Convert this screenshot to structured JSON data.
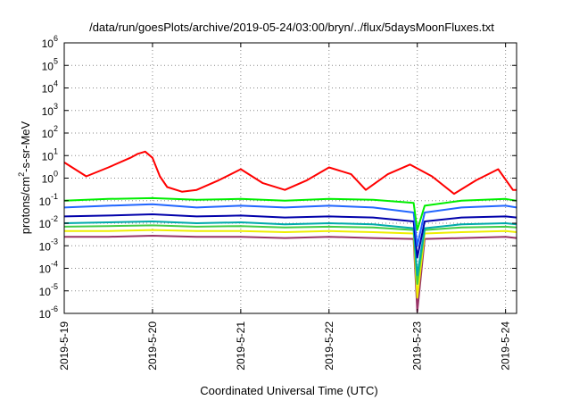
{
  "chart_data": {
    "type": "line",
    "title": "/data/run/goesPlots/archive/2019-05-24/03:00/bryn/../flux/5daysMoonFluxes.txt",
    "xlabel": "Coordinated Universal Time (UTC)",
    "ylabel": {
      "base": "protons/cm",
      "sup": "2",
      "rest": "-s-sr-MeV"
    },
    "y_scale": "log",
    "ylim_exponents": [
      -6,
      6
    ],
    "y_ticks": [
      {
        "base": "10",
        "exp": "-6",
        "e": -6
      },
      {
        "base": "10",
        "exp": "-5",
        "e": -5
      },
      {
        "base": "10",
        "exp": "-4",
        "e": -4
      },
      {
        "base": "10",
        "exp": "-3",
        "e": -3
      },
      {
        "base": "10",
        "exp": "-2",
        "e": -2
      },
      {
        "base": "10",
        "exp": "-1",
        "e": -1
      },
      {
        "base": "10",
        "exp": "0",
        "e": 0
      },
      {
        "base": "10",
        "exp": "1",
        "e": 1
      },
      {
        "base": "10",
        "exp": "2",
        "e": 2
      },
      {
        "base": "10",
        "exp": "3",
        "e": 3
      },
      {
        "base": "10",
        "exp": "4",
        "e": 4
      },
      {
        "base": "10",
        "exp": "5",
        "e": 5
      },
      {
        "base": "10",
        "exp": "6",
        "e": 6
      }
    ],
    "x_range_days": [
      "2019-05-19",
      "2019-05-24 03:00"
    ],
    "x_ticks": [
      "2019-5-19",
      "2019-5-20",
      "2019-5-21",
      "2019-5-22",
      "2019-5-23",
      "2019-5-24"
    ],
    "grid": true,
    "series": [
      {
        "color": "#ff0000",
        "x": [
          "2019-05-19 00:00",
          "2019-05-19 06:00",
          "2019-05-19 12:00",
          "2019-05-19 18:00",
          "2019-05-19 20:00",
          "2019-05-19 22:00",
          "2019-05-20 00:00",
          "2019-05-20 02:00",
          "2019-05-20 04:00",
          "2019-05-20 08:00",
          "2019-05-20 12:00",
          "2019-05-20 18:00",
          "2019-05-21 00:00",
          "2019-05-21 06:00",
          "2019-05-21 12:00",
          "2019-05-21 18:00",
          "2019-05-22 00:00",
          "2019-05-22 06:00",
          "2019-05-22 10:00",
          "2019-05-22 16:00",
          "2019-05-22 22:00",
          "2019-05-23 04:00",
          "2019-05-23 10:00",
          "2019-05-23 16:00",
          "2019-05-23 22:00",
          "2019-05-24 02:00",
          "2019-05-24 03:00"
        ],
        "y": [
          5,
          1.2,
          3,
          8,
          12,
          15,
          8,
          1.2,
          0.4,
          0.25,
          0.3,
          0.8,
          2.5,
          0.6,
          0.3,
          0.8,
          3,
          1.5,
          0.3,
          1.5,
          4,
          1.2,
          0.2,
          0.8,
          2.5,
          0.3,
          0.3
        ]
      },
      {
        "color": "#00ee00",
        "x": [
          "2019-05-19 00:00",
          "2019-05-19 12:00",
          "2019-05-20 00:00",
          "2019-05-20 12:00",
          "2019-05-21 00:00",
          "2019-05-21 12:00",
          "2019-05-22 00:00",
          "2019-05-22 12:00",
          "2019-05-22 23:00",
          "2019-05-23 00:00",
          "2019-05-23 02:00",
          "2019-05-23 12:00",
          "2019-05-24 00:00",
          "2019-05-24 03:00"
        ],
        "y": [
          0.1,
          0.12,
          0.13,
          0.11,
          0.12,
          0.1,
          0.12,
          0.11,
          0.08,
          0.005,
          0.06,
          0.1,
          0.12,
          0.1
        ]
      },
      {
        "color": "#2266ff",
        "x": [
          "2019-05-19 00:00",
          "2019-05-19 12:00",
          "2019-05-20 00:00",
          "2019-05-20 12:00",
          "2019-05-21 00:00",
          "2019-05-21 12:00",
          "2019-05-22 00:00",
          "2019-05-22 12:00",
          "2019-05-22 23:00",
          "2019-05-23 00:00",
          "2019-05-23 02:00",
          "2019-05-23 12:00",
          "2019-05-24 00:00",
          "2019-05-24 03:00"
        ],
        "y": [
          0.05,
          0.06,
          0.07,
          0.05,
          0.06,
          0.05,
          0.06,
          0.05,
          0.03,
          0.001,
          0.03,
          0.05,
          0.06,
          0.05
        ]
      },
      {
        "color": "#0000aa",
        "x": [
          "2019-05-19 00:00",
          "2019-05-19 12:00",
          "2019-05-20 00:00",
          "2019-05-20 12:00",
          "2019-05-21 00:00",
          "2019-05-21 12:00",
          "2019-05-22 00:00",
          "2019-05-22 12:00",
          "2019-05-22 23:00",
          "2019-05-23 00:00",
          "2019-05-23 02:00",
          "2019-05-23 12:00",
          "2019-05-24 00:00",
          "2019-05-24 03:00"
        ],
        "y": [
          0.02,
          0.022,
          0.025,
          0.02,
          0.022,
          0.018,
          0.02,
          0.018,
          0.012,
          0.0003,
          0.012,
          0.018,
          0.02,
          0.018
        ]
      },
      {
        "color": "#00aaaa",
        "x": [
          "2019-05-19 00:00",
          "2019-05-19 12:00",
          "2019-05-20 00:00",
          "2019-05-20 12:00",
          "2019-05-21 00:00",
          "2019-05-21 12:00",
          "2019-05-22 00:00",
          "2019-05-22 12:00",
          "2019-05-22 23:00",
          "2019-05-23 00:00",
          "2019-05-23 02:00",
          "2019-05-23 12:00",
          "2019-05-24 00:00",
          "2019-05-24 03:00"
        ],
        "y": [
          0.01,
          0.011,
          0.012,
          0.01,
          0.011,
          0.009,
          0.01,
          0.009,
          0.006,
          5e-05,
          0.006,
          0.009,
          0.01,
          0.009
        ]
      },
      {
        "color": "#44cc44",
        "x": [
          "2019-05-19 00:00",
          "2019-05-19 12:00",
          "2019-05-20 00:00",
          "2019-05-20 12:00",
          "2019-05-21 00:00",
          "2019-05-21 12:00",
          "2019-05-22 00:00",
          "2019-05-22 12:00",
          "2019-05-22 23:00",
          "2019-05-23 00:00",
          "2019-05-23 02:00",
          "2019-05-23 12:00",
          "2019-05-24 00:00",
          "2019-05-24 03:00"
        ],
        "y": [
          0.007,
          0.0075,
          0.008,
          0.007,
          0.0075,
          0.0065,
          0.007,
          0.0065,
          0.005,
          2e-05,
          0.005,
          0.0065,
          0.007,
          0.0065
        ]
      },
      {
        "color": "#eeee00",
        "x": [
          "2019-05-19 00:00",
          "2019-05-19 12:00",
          "2019-05-20 00:00",
          "2019-05-20 12:00",
          "2019-05-21 00:00",
          "2019-05-21 12:00",
          "2019-05-22 00:00",
          "2019-05-22 12:00",
          "2019-05-22 23:00",
          "2019-05-23 00:00",
          "2019-05-23 02:00",
          "2019-05-23 12:00",
          "2019-05-24 00:00",
          "2019-05-24 03:00"
        ],
        "y": [
          0.0045,
          0.0045,
          0.005,
          0.0045,
          0.0045,
          0.004,
          0.0045,
          0.004,
          0.0035,
          5e-06,
          0.0035,
          0.004,
          0.0045,
          0.004
        ]
      },
      {
        "color": "#993366",
        "x": [
          "2019-05-19 00:00",
          "2019-05-19 12:00",
          "2019-05-20 00:00",
          "2019-05-20 12:00",
          "2019-05-21 00:00",
          "2019-05-21 12:00",
          "2019-05-22 00:00",
          "2019-05-22 12:00",
          "2019-05-22 23:00",
          "2019-05-23 00:00",
          "2019-05-23 02:00",
          "2019-05-23 12:00",
          "2019-05-24 00:00",
          "2019-05-24 03:00"
        ],
        "y": [
          0.0025,
          0.0025,
          0.0028,
          0.0025,
          0.0025,
          0.0022,
          0.0025,
          0.0022,
          0.002,
          1.2e-06,
          0.002,
          0.0022,
          0.0025,
          0.0022
        ]
      }
    ]
  }
}
